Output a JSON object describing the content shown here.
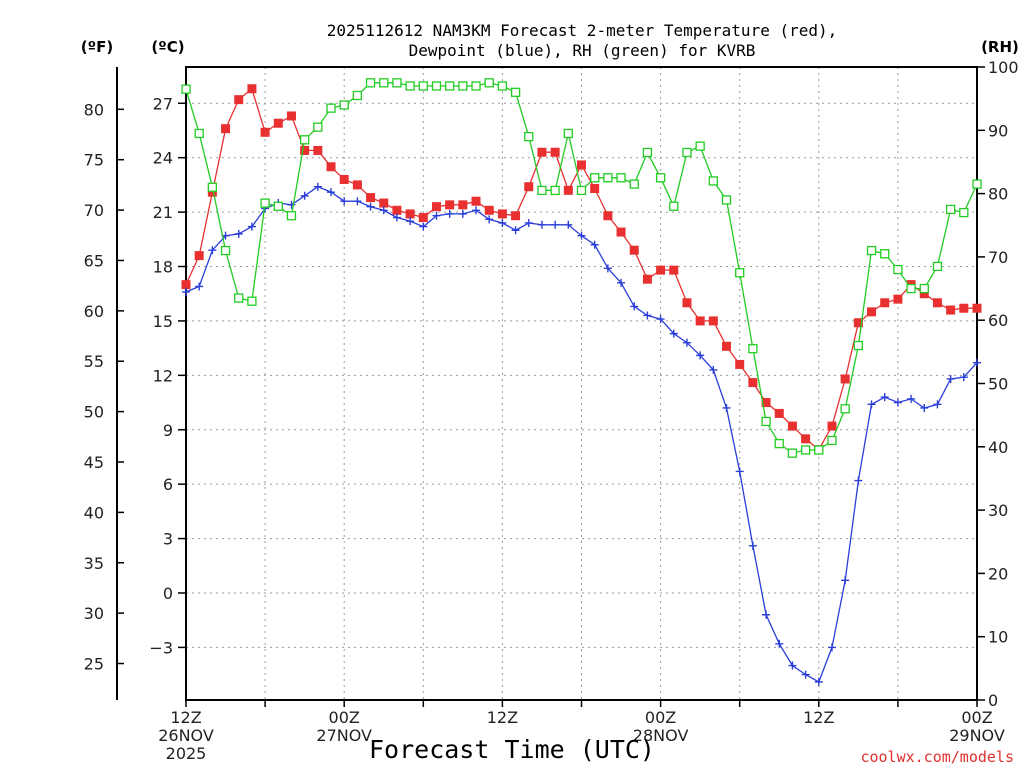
{
  "title_line1": "2025112612 NAM3KM Forecast 2-meter Temperature (red),",
  "title_line2": "Dewpoint (blue), RH (green) for KVRB",
  "unit_f": "(ºF)",
  "unit_c": "(ºC)",
  "unit_rh": "(RH)",
  "xlabel": "Forecast Time (UTC)",
  "credit": "coolwx.com/models",
  "chart_data": {
    "type": "line",
    "title": "2025112612 NAM3KM Forecast 2-meter Temperature (red), Dewpoint (blue), RH (green) for KVRB",
    "xlabel": "Forecast Time (UTC)",
    "x_hours_range": [
      0,
      60
    ],
    "x_ticks": [
      {
        "hour": 0,
        "lines": [
          "12Z",
          "26NOV",
          "2025"
        ]
      },
      {
        "hour": 12,
        "lines": [
          "00Z",
          "27NOV"
        ]
      },
      {
        "hour": 24,
        "lines": [
          "12Z"
        ]
      },
      {
        "hour": 36,
        "lines": [
          "00Z",
          "28NOV"
        ]
      },
      {
        "hour": 48,
        "lines": [
          "12Z"
        ]
      },
      {
        "hour": 60,
        "lines": [
          "00Z",
          "29NOV"
        ]
      }
    ],
    "y_celsius": {
      "label": "(ºC)",
      "range": [
        -5.9,
        29
      ],
      "ticks": [
        27,
        24,
        21,
        18,
        15,
        12,
        9,
        6,
        3,
        0,
        -3
      ]
    },
    "y_fahrenheit": {
      "label": "(ºF)",
      "ticks": [
        80,
        75,
        70,
        65,
        60,
        55,
        50,
        45,
        40,
        35,
        30,
        25
      ]
    },
    "y_rh": {
      "label": "(RH)",
      "range": [
        0,
        100
      ],
      "ticks": [
        100,
        90,
        80,
        70,
        60,
        50,
        40,
        30,
        20,
        10,
        0
      ]
    },
    "series": [
      {
        "name": "2-meter Temperature",
        "color": "#e83030",
        "units": "C",
        "step_hours": 1,
        "values": [
          17.0,
          18.6,
          22.1,
          25.6,
          27.2,
          27.8,
          25.4,
          25.9,
          26.3,
          24.4,
          24.4,
          23.5,
          22.8,
          22.5,
          21.8,
          21.5,
          21.1,
          20.9,
          20.7,
          21.3,
          21.4,
          21.4,
          21.6,
          21.1,
          20.9,
          20.8,
          22.4,
          24.3,
          24.3,
          22.2,
          23.6,
          22.3,
          20.8,
          19.9,
          18.9,
          17.3,
          17.8,
          17.8,
          16.0,
          15.0,
          15.0,
          13.6,
          12.6,
          11.6,
          10.5,
          9.9,
          9.2,
          8.5,
          7.9,
          9.2,
          11.8,
          14.9,
          15.5,
          16.0,
          16.2,
          17.0,
          16.5,
          16.0,
          15.6,
          15.7,
          15.7
        ]
      },
      {
        "name": "Dewpoint",
        "color": "#2a3ed8",
        "units": "C",
        "step_hours": 1,
        "values": [
          16.6,
          16.9,
          18.9,
          19.7,
          19.8,
          20.2,
          21.2,
          21.5,
          21.4,
          21.9,
          22.4,
          22.1,
          21.6,
          21.6,
          21.3,
          21.1,
          20.7,
          20.5,
          20.2,
          20.8,
          20.9,
          20.9,
          21.1,
          20.6,
          20.4,
          20.0,
          20.4,
          20.3,
          20.3,
          20.3,
          19.7,
          19.2,
          17.9,
          17.1,
          15.8,
          15.3,
          15.1,
          14.3,
          13.8,
          13.1,
          12.3,
          10.2,
          6.7,
          2.6,
          -1.2,
          -2.8,
          -4.0,
          -4.5,
          -4.9,
          -3.0,
          0.7,
          6.2,
          10.4,
          10.8,
          10.5,
          10.7,
          10.2,
          10.4,
          11.8,
          11.9,
          12.7
        ]
      },
      {
        "name": "RH",
        "color": "#22cc22",
        "units": "%",
        "step_hours": 1,
        "values": [
          96.5,
          89.5,
          81.0,
          71.0,
          63.5,
          63.0,
          78.5,
          78.0,
          76.5,
          88.5,
          90.5,
          93.5,
          94.0,
          95.5,
          97.5,
          97.5,
          97.5,
          97.0,
          97.0,
          97.0,
          97.0,
          97.0,
          97.0,
          97.5,
          97.0,
          96.0,
          89.0,
          80.5,
          80.5,
          89.5,
          80.5,
          82.5,
          82.5,
          82.5,
          81.5,
          86.5,
          82.5,
          78.0,
          86.5,
          87.5,
          82.0,
          79.0,
          67.5,
          55.5,
          44.0,
          40.5,
          39.0,
          39.5,
          39.5,
          41.0,
          46.0,
          56.0,
          71.0,
          70.5,
          68.0,
          65.0,
          65.0,
          68.5,
          77.5,
          77.0,
          81.5
        ]
      }
    ]
  }
}
